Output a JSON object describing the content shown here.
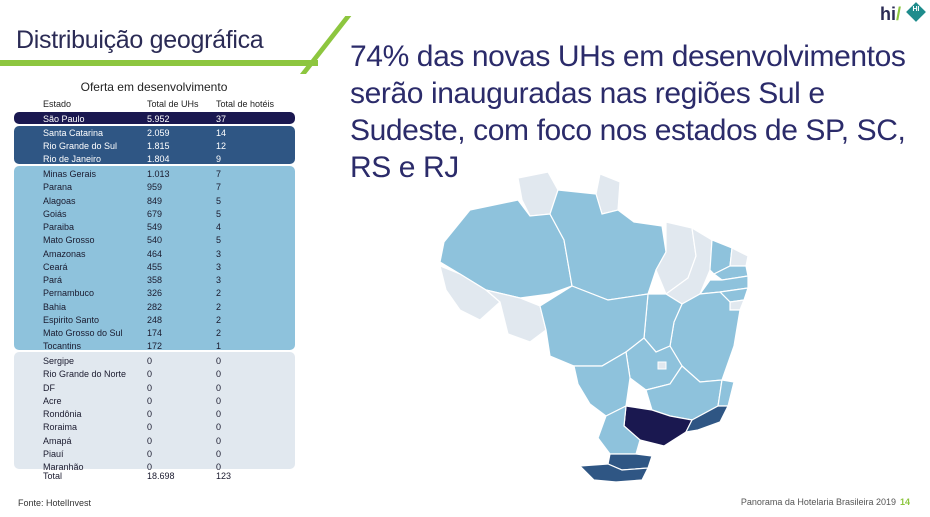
{
  "header": {
    "title": "Distribuição geográfica",
    "headline": "74% das novas UHs em desenvolvimentos serão inauguradas nas regiões Sul e Sudeste, com foco nos estados de SP, SC, RS e RJ",
    "logo_text": "hi",
    "logo_slash": "/",
    "logo_badge": "HI"
  },
  "table": {
    "caption": "Oferta em desenvolvimento",
    "columns": [
      "Estado",
      "Total de UHs",
      "Total de hotéis"
    ],
    "rows": [
      [
        "São Paulo",
        "5.952",
        "37"
      ],
      [
        "Santa Catarina",
        "2.059",
        "14"
      ],
      [
        "Rio Grande do Sul",
        "1.815",
        "12"
      ],
      [
        "Rio de Janeiro",
        "1.804",
        "9"
      ],
      [
        "Minas Gerais",
        "1.013",
        "7"
      ],
      [
        "Parana",
        "959",
        "7"
      ],
      [
        "Alagoas",
        "849",
        "5"
      ],
      [
        "Goiás",
        "679",
        "5"
      ],
      [
        "Paraiba",
        "549",
        "4"
      ],
      [
        "Mato Grosso",
        "540",
        "5"
      ],
      [
        "Amazonas",
        "464",
        "3"
      ],
      [
        "Ceará",
        "455",
        "3"
      ],
      [
        "Pará",
        "358",
        "3"
      ],
      [
        "Pernambuco",
        "326",
        "2"
      ],
      [
        "Bahia",
        "282",
        "2"
      ],
      [
        "Espirito Santo",
        "248",
        "2"
      ],
      [
        "Mato Grosso do Sul",
        "174",
        "2"
      ],
      [
        "Tocantins",
        "172",
        "1"
      ],
      [
        "Sergipe",
        "0",
        "0"
      ],
      [
        "Rio Grande do Norte",
        "0",
        "0"
      ],
      [
        "DF",
        "0",
        "0"
      ],
      [
        "Acre",
        "0",
        "0"
      ],
      [
        "Rondônia",
        "0",
        "0"
      ],
      [
        "Roraima",
        "0",
        "0"
      ],
      [
        "Amapá",
        "0",
        "0"
      ],
      [
        "Piauí",
        "0",
        "0"
      ],
      [
        "Maranhão",
        "0",
        "0"
      ]
    ],
    "total": [
      "Total",
      "18.698",
      "123"
    ]
  },
  "colors": {
    "tier1": "#1a1850",
    "tier2": "#2f5684",
    "tier3": "#8ec2dc",
    "tier4": "#e1e8ef",
    "accent": "#8dc63f"
  },
  "footer": {
    "source": "Fonte: HotelInvest",
    "publication": "Panorama  da Hotelaria Brasileira 2019",
    "page": "14"
  }
}
